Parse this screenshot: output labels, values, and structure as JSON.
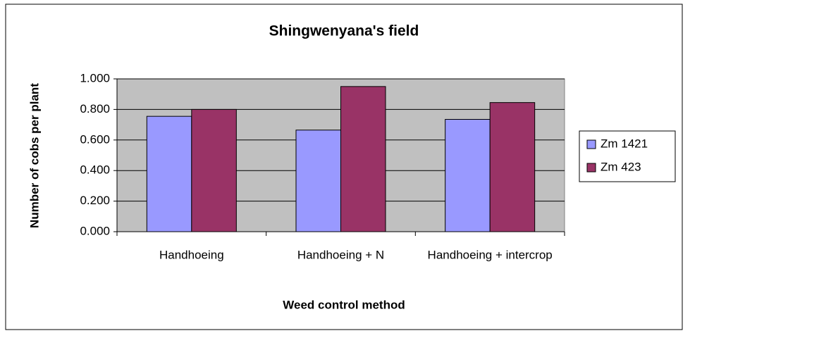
{
  "chart_data": {
    "type": "bar",
    "title": "Shingwenyana's field",
    "x_label": "Weed control method",
    "y_label": "Number of cobs per plant",
    "categories": [
      "Handhoeing",
      "Handhoeing + N",
      "Handhoeing + intercrop"
    ],
    "series": [
      {
        "name": "Zm 1421",
        "color": "#9999ff",
        "values": [
          0.755,
          0.665,
          0.735
        ]
      },
      {
        "name": "Zm 423",
        "color": "#993366",
        "values": [
          0.8,
          0.95,
          0.845
        ]
      }
    ],
    "ylim": [
      0,
      1
    ],
    "yticks": [
      {
        "value": 0,
        "label": "0.000"
      },
      {
        "value": 0.2,
        "label": "0.200"
      },
      {
        "value": 0.4,
        "label": "0.400"
      },
      {
        "value": 0.6,
        "label": "0.600"
      },
      {
        "value": 0.8,
        "label": "0.800"
      },
      {
        "value": 1,
        "label": "1.000"
      }
    ],
    "grid": true,
    "legend": "right",
    "plot_background": "#c0c0c0"
  }
}
